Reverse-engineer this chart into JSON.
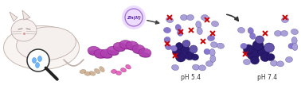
{
  "background_color": "#ffffff",
  "figsize": [
    3.78,
    1.07
  ],
  "dpi": 100,
  "arrow_color": "#333333",
  "zn_text": "Zn(II)",
  "zn_text_color": "#5522aa",
  "ph54_label": "pH 5.4",
  "ph74_label": "pH 7.4",
  "label_fontsize": 5.5,
  "label_color": "#333333",
  "dark_purple": "#2a1a6e",
  "mid_purple": "#6655aa",
  "light_purple": "#8877cc",
  "pale_purple": "#aaa0d8",
  "red_x_color": "#cc0000",
  "helix_color": "#b040b0",
  "helix_dark": "#7a1080",
  "peptide_color": "#c8a0d0",
  "pink_frag": "#e050b0",
  "water_color": "#55aaff",
  "magnifier_color": "#222222",
  "sketch_color": "#aaaaaa",
  "sketch_face": "#f5f0ee"
}
